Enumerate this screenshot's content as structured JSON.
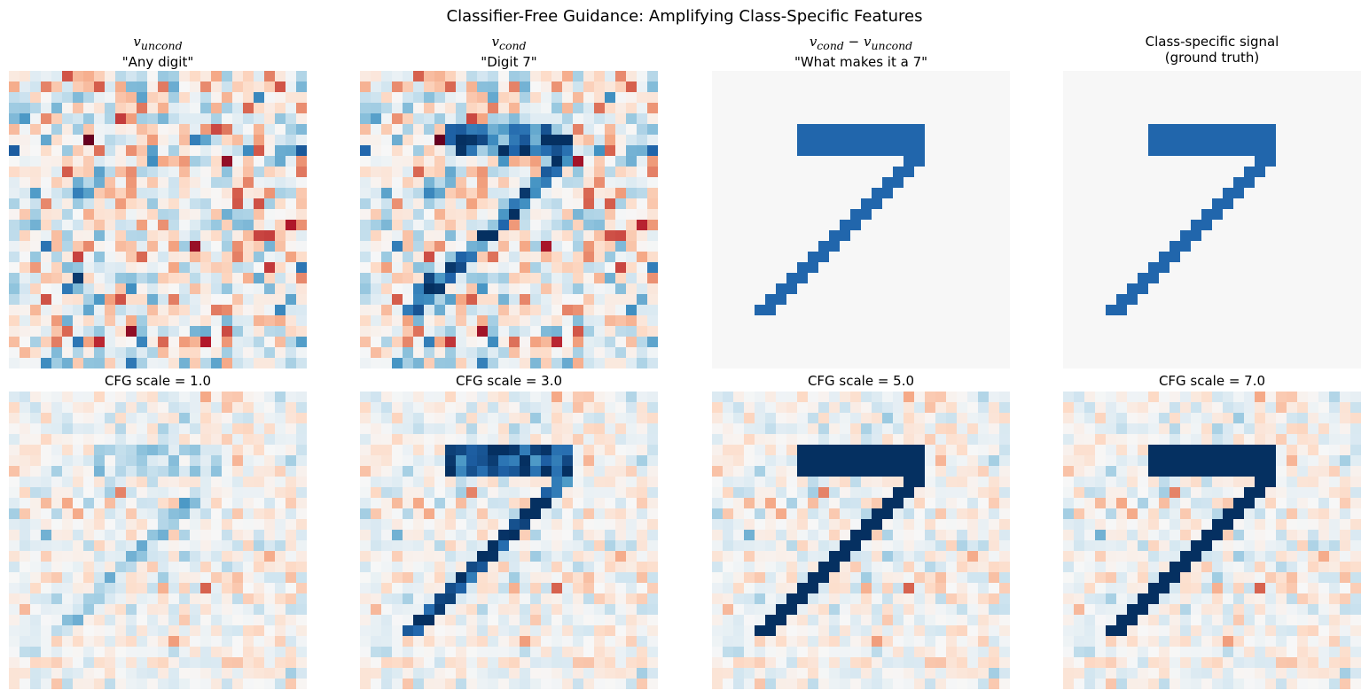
{
  "figure_title": "Classifier-Free Guidance: Amplifying Class-Specific Features",
  "chart_data": {
    "type": "heatmap",
    "grid_size": [
      28,
      28
    ],
    "colormap": "RdBu",
    "axes": "off",
    "digit_mask": {
      "bar_rows": [
        5,
        6,
        7
      ],
      "bar_cols": [
        8,
        19
      ],
      "diagonal": [
        [
          8,
          18,
          19
        ],
        [
          9,
          17,
          18
        ],
        [
          10,
          16,
          17
        ],
        [
          11,
          15,
          16
        ],
        [
          12,
          14,
          15
        ],
        [
          13,
          13,
          14
        ],
        [
          14,
          12,
          13
        ],
        [
          15,
          11,
          12
        ],
        [
          16,
          10,
          11
        ],
        [
          17,
          9,
          10
        ],
        [
          18,
          8,
          9
        ],
        [
          19,
          7,
          8
        ],
        [
          20,
          6,
          7
        ],
        [
          21,
          5,
          6
        ],
        [
          22,
          4,
          5
        ]
      ]
    },
    "panels": [
      {
        "row": 0,
        "kind": "uncond",
        "title_math": "v",
        "title_sub": "uncond",
        "title_line2": "\"Any digit\""
      },
      {
        "row": 0,
        "kind": "cond",
        "title_math": "v",
        "title_sub": "cond",
        "title_line2": "\"Digit 7\""
      },
      {
        "row": 0,
        "kind": "diff",
        "title_math": "v",
        "title_sub": "cond",
        "title_minus": " − ",
        "title_math2": "v",
        "title_sub2": "uncond",
        "title_line2": "\"What makes it a 7\""
      },
      {
        "row": 0,
        "kind": "truth",
        "title_line1": "Class-specific signal",
        "title_line2": "(ground truth)"
      },
      {
        "row": 1,
        "kind": "cfg",
        "scale": 1.0,
        "title_line1": "CFG scale = 1.0"
      },
      {
        "row": 1,
        "kind": "cfg",
        "scale": 3.0,
        "title_line1": "CFG scale = 3.0"
      },
      {
        "row": 1,
        "kind": "cfg",
        "scale": 5.0,
        "title_line1": "CFG scale = 5.0"
      },
      {
        "row": 1,
        "kind": "cfg",
        "scale": 7.0,
        "title_line1": "CFG scale = 7.0"
      }
    ]
  }
}
